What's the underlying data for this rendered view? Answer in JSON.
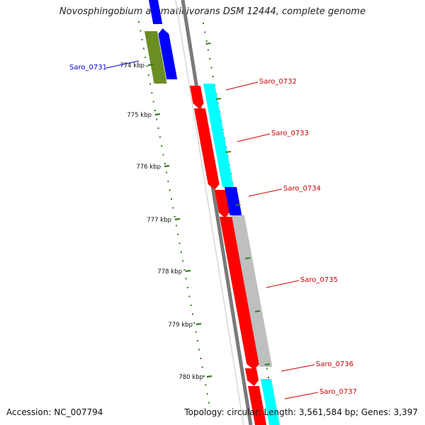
{
  "title": "Novosphingobium aromaticivorans DSM 12444, complete genome",
  "footer": {
    "accession": "Accession: NC_007794",
    "summary": "Topology: circular; Length: 3,561,584 bp; Genes: 3,397"
  },
  "scale_ticks": [
    "774 kbp",
    "775 kbp",
    "776 kbp",
    "777 kbp",
    "778 kbp",
    "779 kbp",
    "780 kbp"
  ],
  "gene_labels": [
    {
      "name": "Saro_0731",
      "strand": "minus"
    },
    {
      "name": "Saro_0732",
      "strand": "plus"
    },
    {
      "name": "Saro_0733",
      "strand": "plus"
    },
    {
      "name": "Saro_0734",
      "strand": "plus"
    },
    {
      "name": "Saro_0735",
      "strand": "plus"
    },
    {
      "name": "Saro_0736",
      "strand": "plus"
    },
    {
      "name": "Saro_0737",
      "strand": "plus"
    }
  ],
  "colors": {
    "backbone": "#7a7a7a",
    "tick": "#2e7d1e",
    "cds_red": "#ff0000",
    "cds_cyan": "#00ffff",
    "cds_blue": "#0000ff",
    "cds_gray": "#bfbfbf",
    "cds_olive": "#6b8e23",
    "label_plus": "#cc0000",
    "label_minus": "#0000cc"
  }
}
